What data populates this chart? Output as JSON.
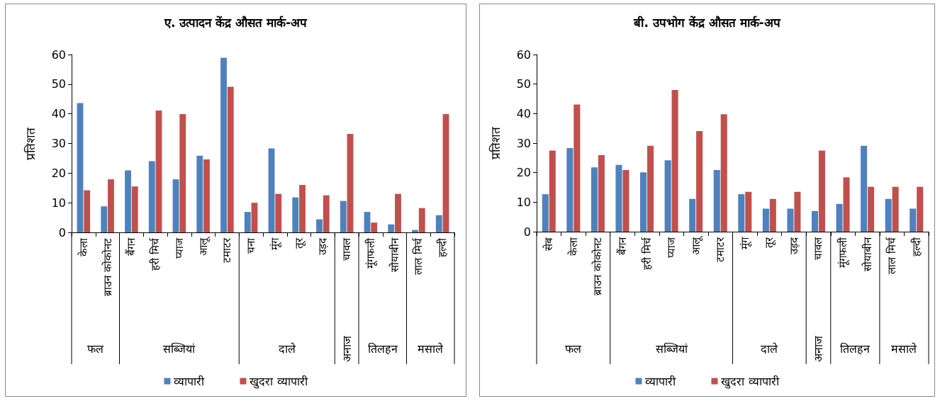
{
  "chart_data": [
    {
      "type": "bar",
      "title": "ए. उत्पादन केंद्र औसत मार्क-अप",
      "ylabel": "प्रतिशत",
      "categories": [
        "केला",
        "ब्राउन कोकोनट",
        "बैंगन",
        "हरी मिर्च",
        "प्याज",
        "आलू",
        "टमाटर",
        "चना",
        "मूंग",
        "तूर",
        "उड़द",
        "चावल",
        "मूंगफली",
        "सोयाबीन",
        "लाल मिर्च",
        "हल्दी"
      ],
      "series": [
        {
          "name": "व्यापारी",
          "color": "#4f81bd",
          "values": [
            43.6,
            8.8,
            20.9,
            24.0,
            17.9,
            25.9,
            58.9,
            6.9,
            28.3,
            11.8,
            4.4,
            10.6,
            6.9,
            2.7,
            0.8,
            5.8
          ]
        },
        {
          "name": "खुदरा व्यापारी",
          "color": "#c0504d",
          "values": [
            14.2,
            17.9,
            15.5,
            41.1,
            39.9,
            24.6,
            49.1,
            10.0,
            13.0,
            16.0,
            12.5,
            33.2,
            3.3,
            13.0,
            8.2,
            39.9
          ]
        }
      ],
      "annotations": [
        "फल",
        "सब्जियां",
        "दाले",
        "अनाज",
        "तिलहन",
        "मसाले"
      ],
      "ylim": [
        0,
        60
      ],
      "yticks": [
        0,
        10,
        20,
        30,
        40,
        50,
        60
      ],
      "grid": false,
      "legend": "bottom"
    },
    {
      "type": "bar",
      "title": "बी. उपभोग केंद्र औसत मार्क-अप",
      "ylabel": "प्रतिशत",
      "categories": [
        "सेब",
        "केला",
        "ब्राउन कोकोनट",
        "बैंगन",
        "हरी मिर्च",
        "प्याज",
        "आलू",
        "टमाटर",
        "मूंग",
        "तूर",
        "उड़द",
        "चावल",
        "मूंगफली",
        "सोयाबीन",
        "लाल मिर्च",
        "हल्दी"
      ],
      "series": [
        {
          "name": "व्यापारी",
          "color": "#4f81bd",
          "values": [
            12.7,
            28.3,
            21.8,
            22.6,
            20.1,
            24.2,
            11.1,
            20.9,
            12.7,
            7.8,
            7.8,
            7.0,
            9.4,
            29.1,
            11.1,
            7.8
          ]
        },
        {
          "name": "खुदरा व्यापारी",
          "color": "#c0504d",
          "values": [
            27.5,
            43.1,
            25.9,
            20.9,
            29.1,
            48.0,
            34.1,
            39.8,
            13.5,
            11.1,
            13.5,
            27.5,
            18.4,
            15.2,
            15.2,
            15.2
          ]
        }
      ],
      "annotations": [
        "फल",
        "सब्जियां",
        "दाले",
        "अनाज",
        "तिलहन",
        "मसाले"
      ],
      "ylim": [
        0,
        60
      ],
      "yticks": [
        0,
        10,
        20,
        30,
        40,
        50,
        60
      ],
      "grid": false,
      "legend": "bottom"
    }
  ]
}
